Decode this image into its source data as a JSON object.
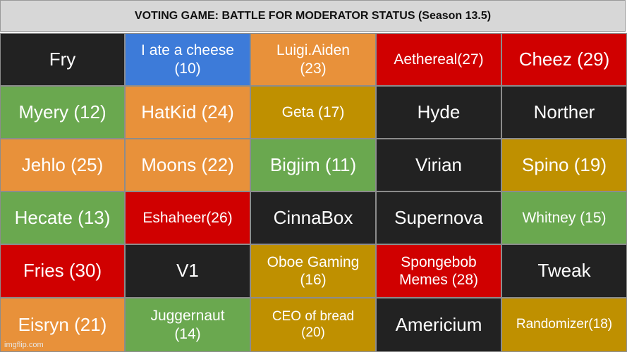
{
  "title": "VOTING GAME: BATTLE FOR MODERATOR STATUS (Season 13.5)",
  "watermark": "imgflip.com",
  "colors": {
    "black": "#222222",
    "blue": "#3d7bd9",
    "orange": "#e8913a",
    "red": "#d00000",
    "green": "#6aa84f",
    "gold": "#bf9000"
  },
  "cells": [
    {
      "label": "Fry",
      "color": "black",
      "size": "l"
    },
    {
      "label": "I ate a cheese\n(10)",
      "color": "blue",
      "size": "m"
    },
    {
      "label": "Luigi.Aiden\n(23)",
      "color": "orange",
      "size": "m"
    },
    {
      "label": "Aethereal(27)",
      "color": "red",
      "size": "m"
    },
    {
      "label": "Cheez (29)",
      "color": "red",
      "size": "l"
    },
    {
      "label": "Myery (12)",
      "color": "green",
      "size": "l"
    },
    {
      "label": "HatKid (24)",
      "color": "orange",
      "size": "l"
    },
    {
      "label": "Geta (17)",
      "color": "gold",
      "size": "m"
    },
    {
      "label": "Hyde",
      "color": "black",
      "size": "l"
    },
    {
      "label": "Norther",
      "color": "black",
      "size": "l"
    },
    {
      "label": "Jehlo (25)",
      "color": "orange",
      "size": "l"
    },
    {
      "label": "Moons (22)",
      "color": "orange",
      "size": "l"
    },
    {
      "label": "Bigjim (11)",
      "color": "green",
      "size": "l"
    },
    {
      "label": "Virian",
      "color": "black",
      "size": "l"
    },
    {
      "label": "Spino (19)",
      "color": "gold",
      "size": "l"
    },
    {
      "label": "Hecate (13)",
      "color": "green",
      "size": "l"
    },
    {
      "label": "Eshaheer(26)",
      "color": "red",
      "size": "m"
    },
    {
      "label": "CinnaBox",
      "color": "black",
      "size": "l"
    },
    {
      "label": "Supernova",
      "color": "black",
      "size": "l"
    },
    {
      "label": "Whitney (15)",
      "color": "green",
      "size": "m"
    },
    {
      "label": "Fries (30)",
      "color": "red",
      "size": "l"
    },
    {
      "label": "V1",
      "color": "black",
      "size": "l"
    },
    {
      "label": "Oboe Gaming\n(16)",
      "color": "gold",
      "size": "m"
    },
    {
      "label": "Spongebob\nMemes (28)",
      "color": "red",
      "size": "m"
    },
    {
      "label": "Tweak",
      "color": "black",
      "size": "l"
    },
    {
      "label": "Eisryn (21)",
      "color": "orange",
      "size": "l"
    },
    {
      "label": "Juggernaut\n(14)",
      "color": "green",
      "size": "m"
    },
    {
      "label": "CEO of bread\n(20)",
      "color": "gold",
      "size": "s"
    },
    {
      "label": "Americium",
      "color": "black",
      "size": "l"
    },
    {
      "label": "Randomizer(18)",
      "color": "gold",
      "size": "s"
    }
  ]
}
